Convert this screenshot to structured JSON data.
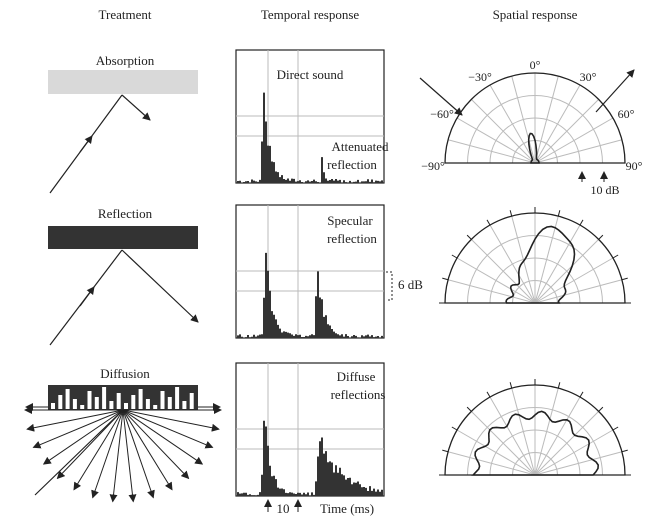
{
  "columns": [
    "Treatment",
    "Temporal response",
    "Spatial response"
  ],
  "rows": [
    {
      "treatment": "Absorption",
      "temporal_labels": [
        [
          "Direct sound"
        ],
        [
          "Attenuated",
          "reflection"
        ]
      ]
    },
    {
      "treatment": "Reflection",
      "temporal_labels": [
        [
          "Specular",
          "reflection"
        ]
      ]
    },
    {
      "treatment": "Diffusion",
      "temporal_labels": [
        [
          "Diffuse",
          "reflections"
        ]
      ]
    }
  ],
  "level_scale": "6 dB",
  "time_tick": "10",
  "time_label": "Time (ms)",
  "polar_angles": [
    "0°",
    "−30°",
    "30°",
    "−60°",
    "60°",
    "−90°",
    "90°"
  ],
  "polar_scale": "10 dB"
}
